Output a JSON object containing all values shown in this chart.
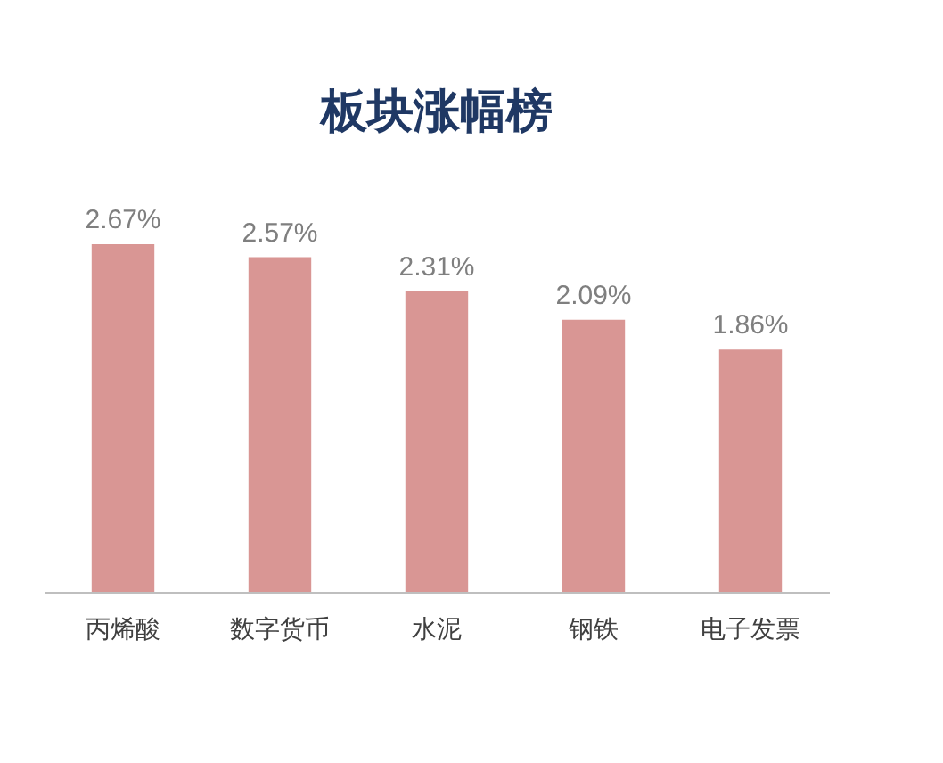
{
  "chart_data": {
    "type": "bar",
    "title": "板块涨幅榜",
    "categories": [
      "丙烯酸",
      "数字货币",
      "水泥",
      "钢铁",
      "电子发票"
    ],
    "values": [
      2.67,
      2.57,
      2.31,
      2.09,
      1.86
    ],
    "value_labels": [
      "2.67%",
      "2.57%",
      "2.31%",
      "2.09%",
      "1.86%"
    ],
    "color": "#d99694"
  }
}
